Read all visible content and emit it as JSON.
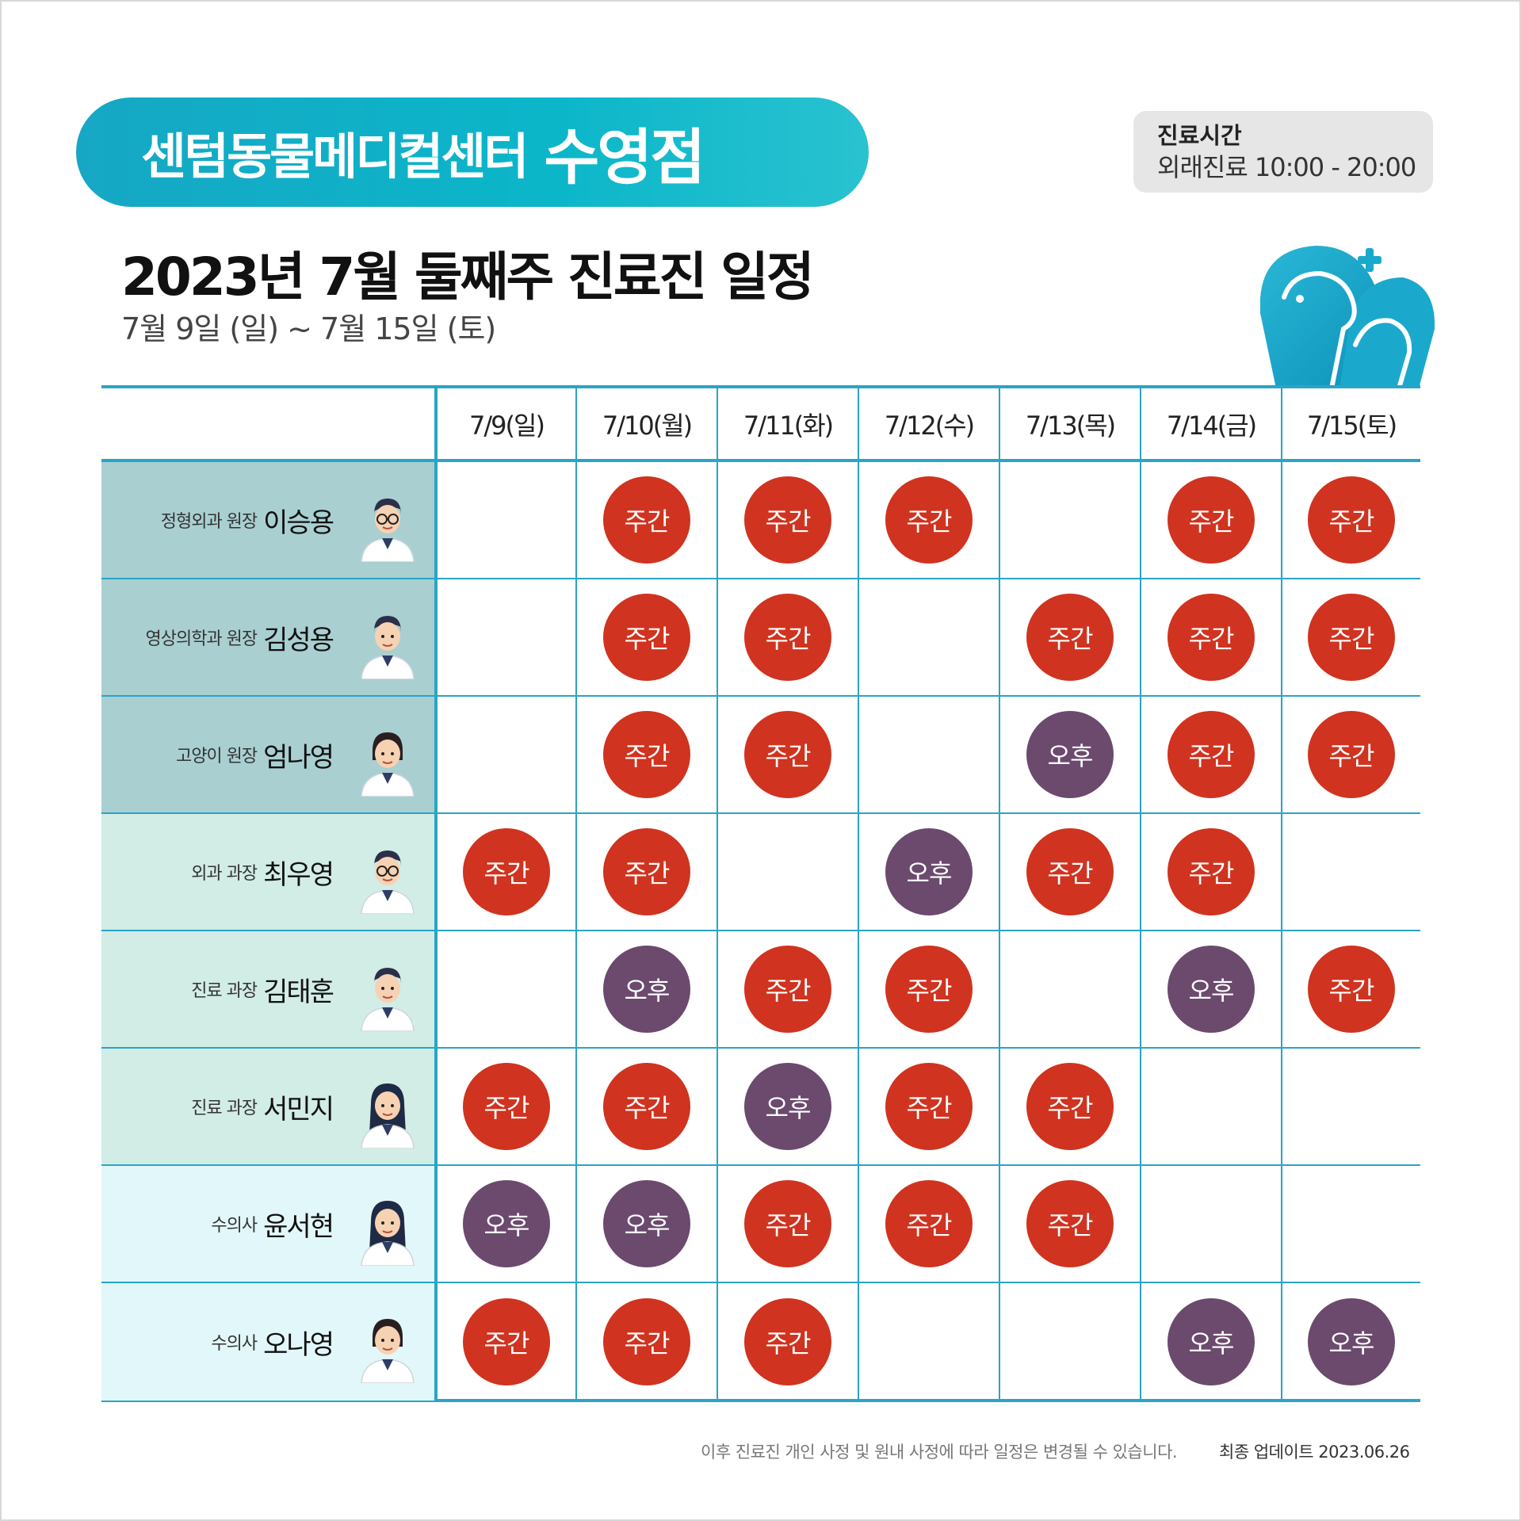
{
  "header": {
    "clinic_name": "센텀동물메디컬센터",
    "clinic_branch": "수영점",
    "hours_title": "진료시간",
    "hours_text": "외래진료 10:00 - 20:00",
    "title": "2023년 7월 둘째주 진료진 일정",
    "subtitle": "7월 9일 (일) ~ 7월 15일 (토)"
  },
  "colors": {
    "accent": "#2aa4c7",
    "day_badge": "#d0331f",
    "pm_badge": "#6b4a6e",
    "group1_bg": "#a9cfd1",
    "group2_bg": "#d2ece6",
    "group3_bg": "#e2f7f9"
  },
  "days": [
    "7/9(일)",
    "7/10(월)",
    "7/11(화)",
    "7/12(수)",
    "7/13(목)",
    "7/14(금)",
    "7/15(토)"
  ],
  "doctors": [
    {
      "role": "정형외과 원장",
      "name": "이승용",
      "group": 1,
      "avatar": "doctor-male-glasses-icon",
      "slots": [
        "",
        "주간",
        "주간",
        "주간",
        "",
        "주간",
        "주간"
      ]
    },
    {
      "role": "영상의학과 원장",
      "name": "김성용",
      "group": 1,
      "avatar": "doctor-male-smile-icon",
      "slots": [
        "",
        "주간",
        "주간",
        "",
        "주간",
        "주간",
        "주간"
      ]
    },
    {
      "role": "고양이 원장",
      "name": "엄나영",
      "group": 1,
      "avatar": "doctor-female-ponytail-icon",
      "slots": [
        "",
        "주간",
        "주간",
        "",
        "오후",
        "주간",
        "주간"
      ]
    },
    {
      "role": "외과 과장",
      "name": "최우영",
      "group": 2,
      "avatar": "doctor-male-glasses-icon",
      "slots": [
        "주간",
        "주간",
        "",
        "오후",
        "주간",
        "주간",
        ""
      ]
    },
    {
      "role": "진료 과장",
      "name": "김태훈",
      "group": 2,
      "avatar": "doctor-male-icon",
      "slots": [
        "",
        "오후",
        "주간",
        "주간",
        "",
        "오후",
        "주간"
      ]
    },
    {
      "role": "진료 과장",
      "name": "서민지",
      "group": 2,
      "avatar": "doctor-female-long-hair-icon",
      "slots": [
        "주간",
        "주간",
        "오후",
        "주간",
        "주간",
        "",
        ""
      ]
    },
    {
      "role": "수의사",
      "name": "윤서현",
      "group": 3,
      "avatar": "doctor-female-long-hair-icon",
      "slots": [
        "오후",
        "오후",
        "주간",
        "주간",
        "주간",
        "",
        ""
      ]
    },
    {
      "role": "수의사",
      "name": "오나영",
      "group": 3,
      "avatar": "doctor-female-icon",
      "slots": [
        "주간",
        "주간",
        "주간",
        "",
        "",
        "오후",
        "오후"
      ]
    }
  ],
  "footer": {
    "note": "이후 진료진 개인 사정 및 원내 사정에 따라 일정은 변경될 수 있습니다.",
    "update": "최종 업데이트  2023.06.26"
  }
}
